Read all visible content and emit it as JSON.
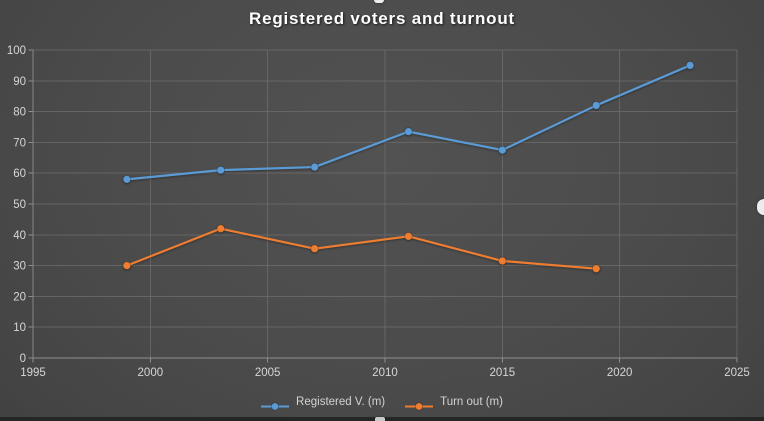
{
  "slide": {
    "title": "Registered voters and turnout"
  },
  "chart_data": {
    "type": "line",
    "title": "Registered voters and turnout",
    "xlabel": "",
    "ylabel": "",
    "x": [
      1999,
      2003,
      2007,
      2011,
      2015,
      2019,
      2023
    ],
    "series": [
      {
        "name": "Registered V. (m)",
        "color": "#5B9BD5",
        "values": [
          58,
          61,
          62,
          73.5,
          67.5,
          82,
          95
        ]
      },
      {
        "name": "Turn out (m)",
        "color": "#ED7D31",
        "values": [
          30,
          42,
          35.5,
          39.5,
          31.5,
          29,
          null
        ]
      }
    ],
    "xlim": [
      1995,
      2025
    ],
    "ylim": [
      0,
      100
    ],
    "x_ticks": [
      1995,
      2000,
      2005,
      2010,
      2015,
      2020,
      2025
    ],
    "y_ticks": [
      0,
      10,
      20,
      30,
      40,
      50,
      60,
      70,
      80,
      90,
      100
    ],
    "grid": true,
    "legend_position": "bottom"
  },
  "legend": {
    "items": [
      {
        "label": "Registered V. (m)",
        "color": "#5B9BD5"
      },
      {
        "label": "Turn out (m)",
        "color": "#ED7D31"
      }
    ]
  },
  "colors": {
    "title_text": "#ffffff",
    "tick_label": "#d6d6d6",
    "gridline": "#6e6e6e",
    "axis_line": "#8f8f8f",
    "series_registered": "#5B9BD5",
    "series_turnout": "#ED7D31",
    "background_center": "#4f4f4f",
    "background_edge": "#2e2e2e",
    "slide_edge": "#262626"
  }
}
